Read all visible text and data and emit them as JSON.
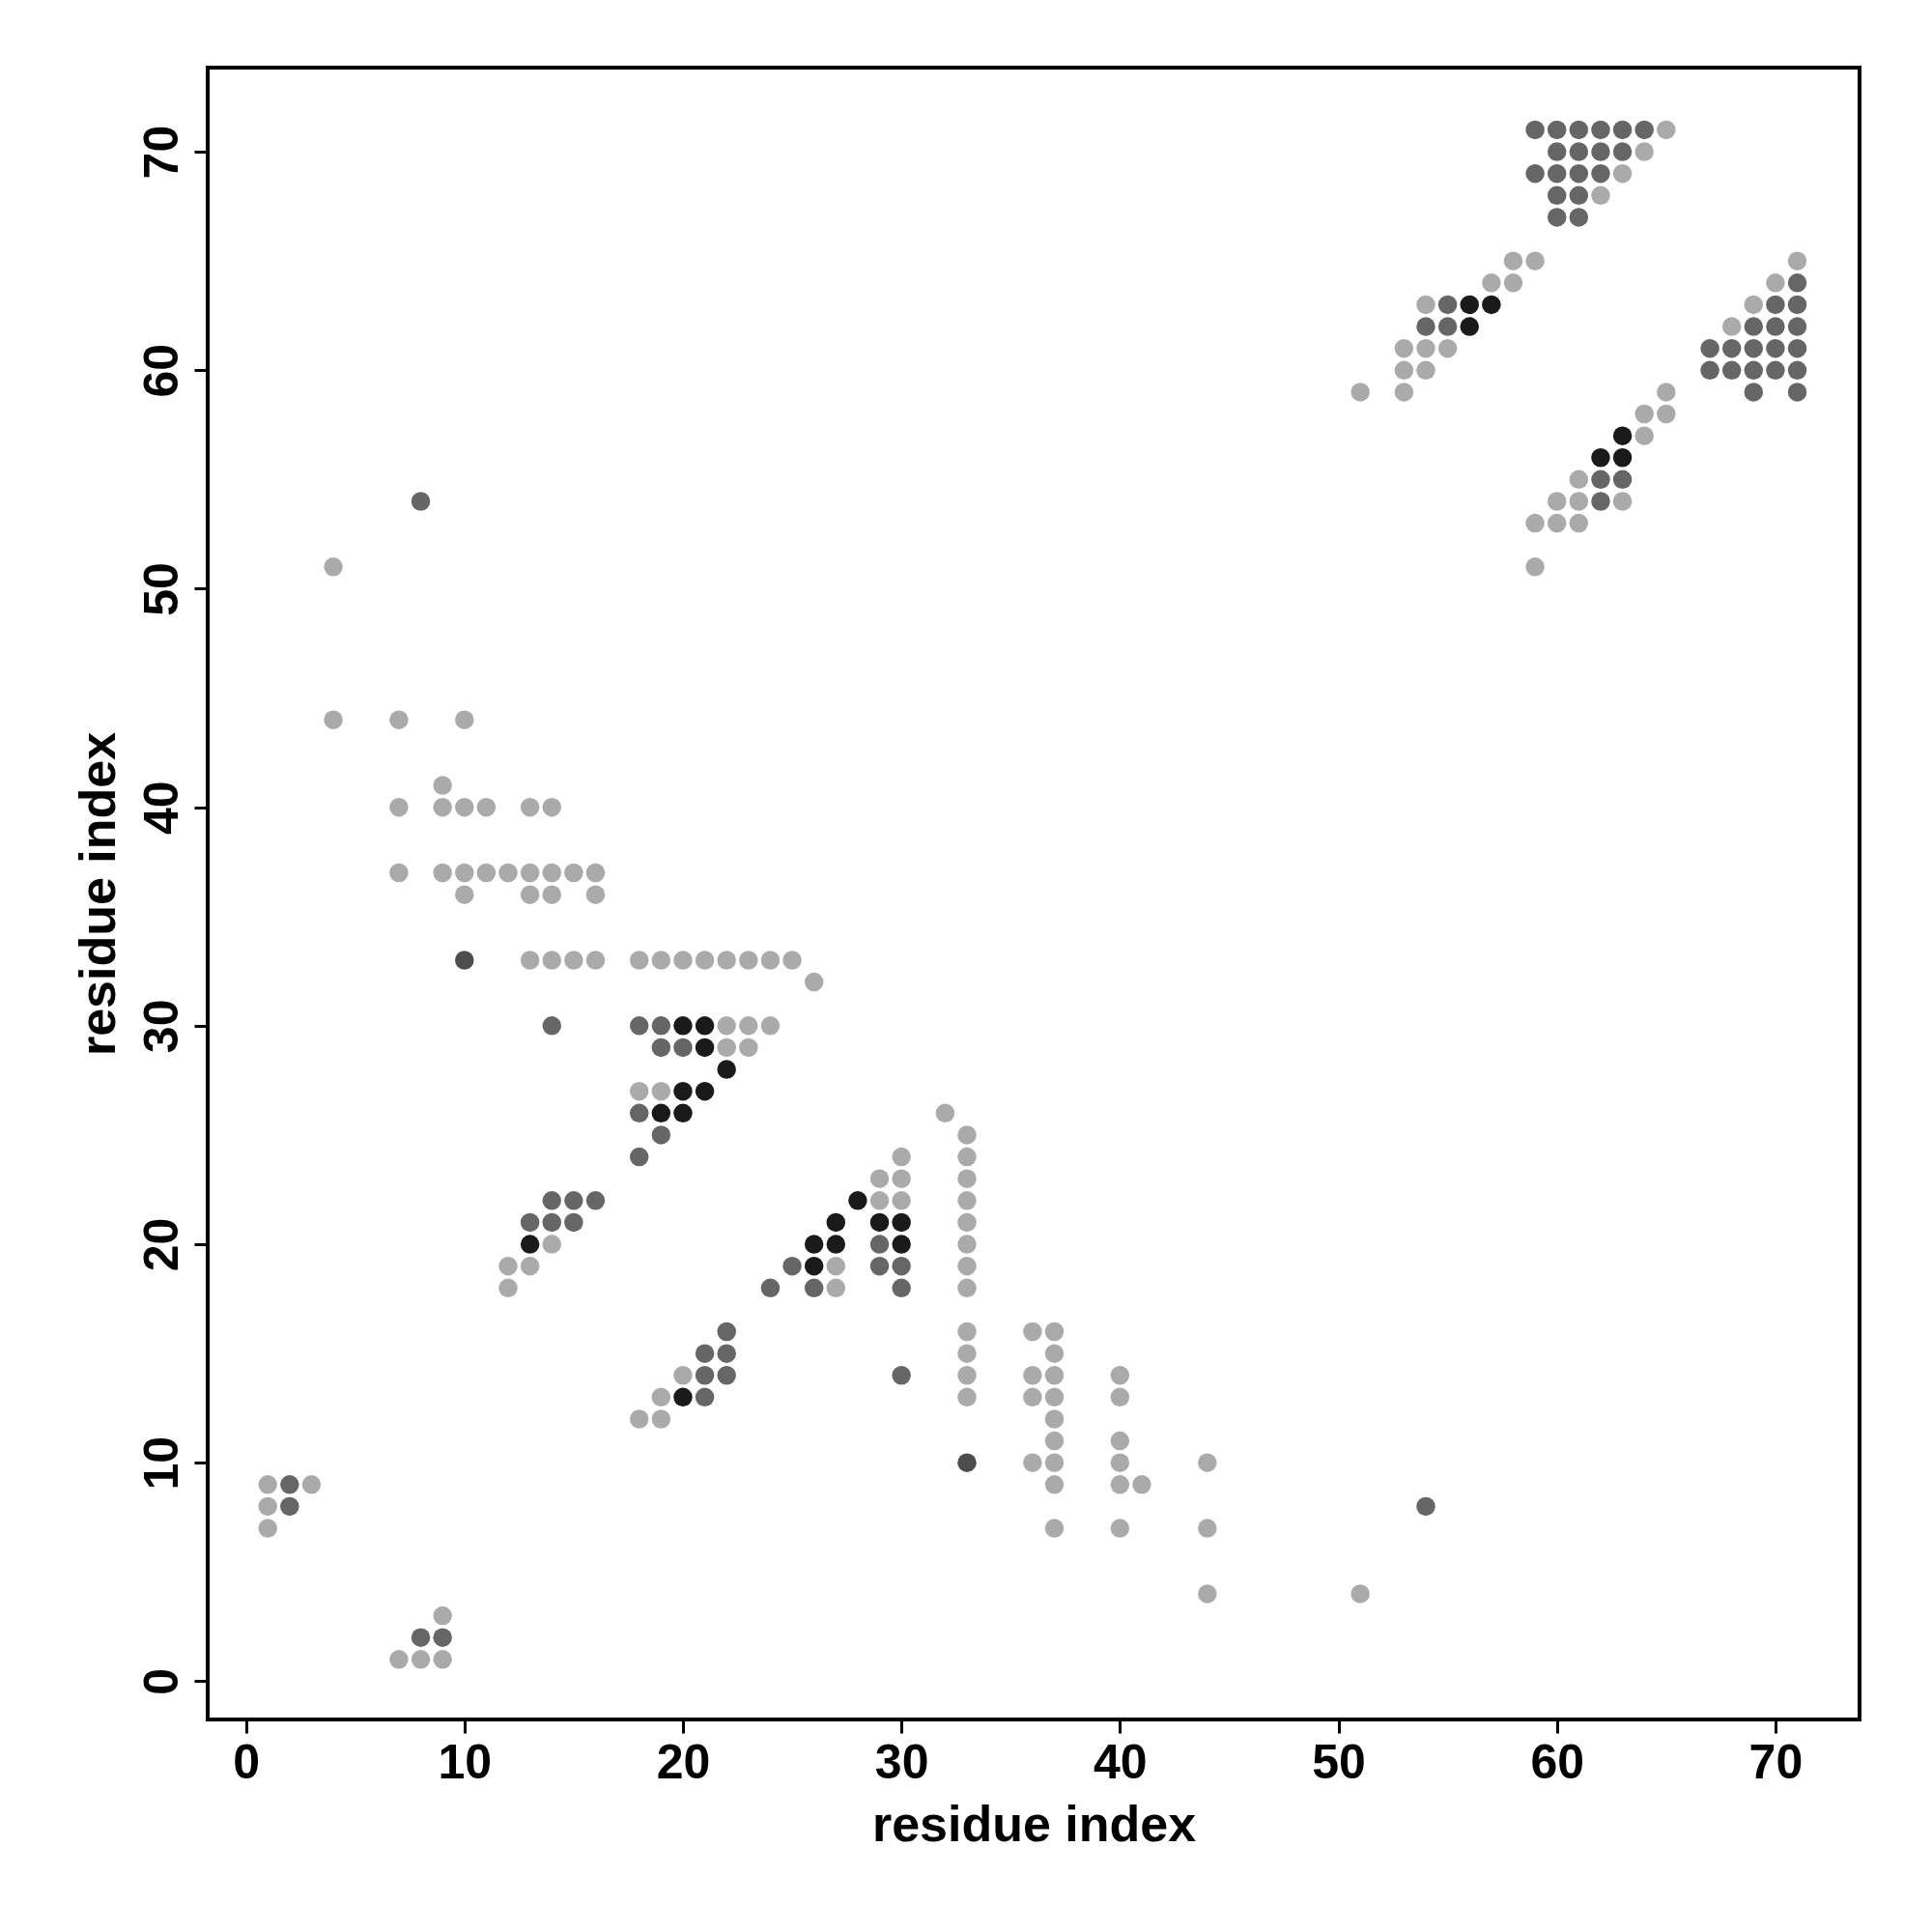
{
  "chart_data": {
    "type": "scatter",
    "xlabel": "residue index",
    "ylabel": "residue index",
    "xlim": [
      -1.75,
      73.85
    ],
    "ylim": [
      -1.75,
      73.85
    ],
    "xticks": [
      0,
      10,
      20,
      30,
      40,
      50,
      60,
      70
    ],
    "yticks": [
      0,
      10,
      20,
      30,
      40,
      50,
      60,
      70
    ],
    "marker": "circle",
    "series": [
      {
        "color": "#aaaaaa",
        "x": [
          1,
          3,
          1,
          1,
          9,
          7,
          8,
          9,
          4,
          4,
          7,
          10,
          9,
          7,
          9,
          10,
          11,
          13,
          14,
          7,
          9,
          10,
          11,
          12,
          13,
          14,
          15,
          16,
          10,
          13,
          14,
          16,
          13,
          14,
          15,
          16,
          18,
          19,
          20,
          21,
          22,
          23,
          24,
          25,
          26,
          22,
          23,
          24,
          22,
          23,
          18,
          19,
          14,
          12,
          13,
          12,
          29,
          30,
          30,
          29,
          30,
          27,
          27,
          32,
          33,
          33,
          33,
          33,
          33,
          33,
          33,
          33,
          33,
          33,
          33,
          33,
          36,
          36,
          36,
          36,
          37,
          37,
          37,
          37,
          37,
          37,
          37,
          37,
          37,
          40,
          40,
          40,
          40,
          40,
          40,
          41,
          44,
          44,
          44,
          51,
          20,
          19,
          18,
          19,
          65,
          64,
          63,
          62,
          58,
          59,
          57,
          58,
          54,
          53,
          54,
          55,
          53,
          54,
          51,
          53,
          71,
          70,
          69,
          68,
          65,
          64,
          65,
          64,
          61,
          63,
          60,
          61,
          59,
          60,
          61,
          59
        ],
        "values": [
          9,
          9,
          8,
          7,
          3,
          1,
          1,
          1,
          51,
          44,
          44,
          44,
          41,
          40,
          40,
          40,
          40,
          40,
          40,
          37,
          37,
          37,
          37,
          37,
          37,
          37,
          37,
          37,
          36,
          36,
          36,
          36,
          33,
          33,
          33,
          33,
          33,
          33,
          33,
          33,
          33,
          33,
          33,
          33,
          32,
          30,
          30,
          30,
          29,
          29,
          27,
          27,
          20,
          19,
          19,
          18,
          23,
          24,
          23,
          22,
          22,
          19,
          18,
          26,
          25,
          24,
          23,
          22,
          21,
          20,
          19,
          18,
          16,
          15,
          14,
          13,
          16,
          14,
          13,
          10,
          16,
          15,
          14,
          13,
          12,
          11,
          10,
          9,
          7,
          14,
          13,
          11,
          10,
          9,
          7,
          9,
          10,
          7,
          4,
          4,
          14,
          13,
          12,
          12,
          71,
          70,
          69,
          68,
          65,
          65,
          64,
          64,
          63,
          61,
          61,
          61,
          60,
          60,
          59,
          59,
          65,
          64,
          63,
          62,
          59,
          58,
          58,
          57,
          55,
          54,
          54,
          54,
          53,
          53,
          53,
          51
        ]
      },
      {
        "color": "#666666",
        "x": [
          2,
          2,
          8,
          9,
          8,
          14,
          18,
          19,
          19,
          20,
          19,
          18,
          18,
          14,
          15,
          16,
          13,
          14,
          15,
          29,
          25,
          29,
          30,
          24,
          26,
          30,
          22,
          21,
          22,
          21,
          22,
          21,
          30,
          54,
          59,
          60,
          61,
          62,
          63,
          64,
          60,
          61,
          62,
          63,
          59,
          60,
          61,
          62,
          60,
          61,
          60,
          61,
          55,
          54,
          55,
          71,
          70,
          71,
          69,
          70,
          71,
          67,
          68,
          69,
          70,
          71,
          67,
          68,
          69,
          70,
          71,
          69,
          71,
          62,
          63,
          62
        ],
        "values": [
          9,
          8,
          2,
          2,
          54,
          30,
          30,
          30,
          29,
          29,
          25,
          26,
          24,
          22,
          22,
          22,
          21,
          21,
          21,
          20,
          19,
          19,
          19,
          18,
          18,
          18,
          16,
          15,
          15,
          14,
          14,
          13,
          14,
          8,
          71,
          71,
          71,
          71,
          71,
          71,
          70,
          70,
          70,
          70,
          69,
          69,
          69,
          69,
          68,
          68,
          67,
          67,
          63,
          62,
          62,
          64,
          63,
          63,
          62,
          62,
          62,
          61,
          61,
          61,
          61,
          61,
          60,
          60,
          60,
          60,
          60,
          59,
          59,
          55,
          55,
          54
        ]
      },
      {
        "color": "#4d4d4d",
        "x": [
          10,
          33
        ],
        "values": [
          33,
          10
        ]
      },
      {
        "color": "#1a1a1a",
        "x": [
          20,
          21,
          21,
          22,
          20,
          21,
          19,
          20,
          13,
          28,
          27,
          29,
          30,
          26,
          27,
          30,
          26,
          20,
          56,
          57,
          56,
          63,
          62,
          63
        ],
        "values": [
          30,
          30,
          29,
          28,
          27,
          27,
          26,
          26,
          20,
          22,
          21,
          21,
          21,
          20,
          20,
          20,
          19,
          13,
          63,
          63,
          62,
          57,
          56,
          56
        ]
      }
    ]
  }
}
